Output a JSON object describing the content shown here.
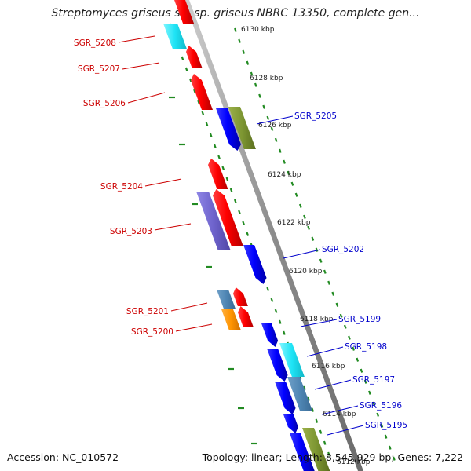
{
  "title": "Streptomyces griseus subsp. griseus NBRC 13350, complete gen...",
  "footer": {
    "accession": "Accession: NC_010572",
    "summary": "Topology: linear; Length: 8,545,929 bp; Genes: 7,222"
  },
  "colors": {
    "forward_gene": "#ff0000",
    "reverse_gene": "#0000ff",
    "backbone": "#999999",
    "orf_tick": "#228b22",
    "label_forward": "#cc0000",
    "label_reverse": "#0000cc"
  },
  "map": {
    "ruler": [
      {
        "label": "6130 kbp",
        "kbp": 6130
      },
      {
        "label": "6128 kbp",
        "kbp": 6128
      },
      {
        "label": "6126 kbp",
        "kbp": 6126
      },
      {
        "label": "6124 kbp",
        "kbp": 6124
      },
      {
        "label": "6122 kbp",
        "kbp": 6122
      },
      {
        "label": "6120 kbp",
        "kbp": 6120
      },
      {
        "label": "6118 kbp",
        "kbp": 6118
      },
      {
        "label": "6116 kbp",
        "kbp": 6116
      },
      {
        "label": "6114 kbp",
        "kbp": 6114
      },
      {
        "label": "6112 kbp",
        "kbp": 6112
      }
    ],
    "gene_labels": [
      {
        "text": "SGR_5208",
        "strand": "forward"
      },
      {
        "text": "SGR_5207",
        "strand": "forward"
      },
      {
        "text": "SGR_5206",
        "strand": "forward"
      },
      {
        "text": "SGR_5205",
        "strand": "reverse"
      },
      {
        "text": "SGR_5204",
        "strand": "forward"
      },
      {
        "text": "SGR_5203",
        "strand": "forward"
      },
      {
        "text": "SGR_5202",
        "strand": "reverse"
      },
      {
        "text": "SGR_5201",
        "strand": "forward"
      },
      {
        "text": "SGR_5200",
        "strand": "forward"
      },
      {
        "text": "SGR_5199",
        "strand": "reverse"
      },
      {
        "text": "SGR_5198",
        "strand": "reverse"
      },
      {
        "text": "SGR_5197",
        "strand": "reverse"
      },
      {
        "text": "SGR_5196",
        "strand": "reverse"
      },
      {
        "text": "SGR_5195",
        "strand": "reverse"
      }
    ]
  }
}
